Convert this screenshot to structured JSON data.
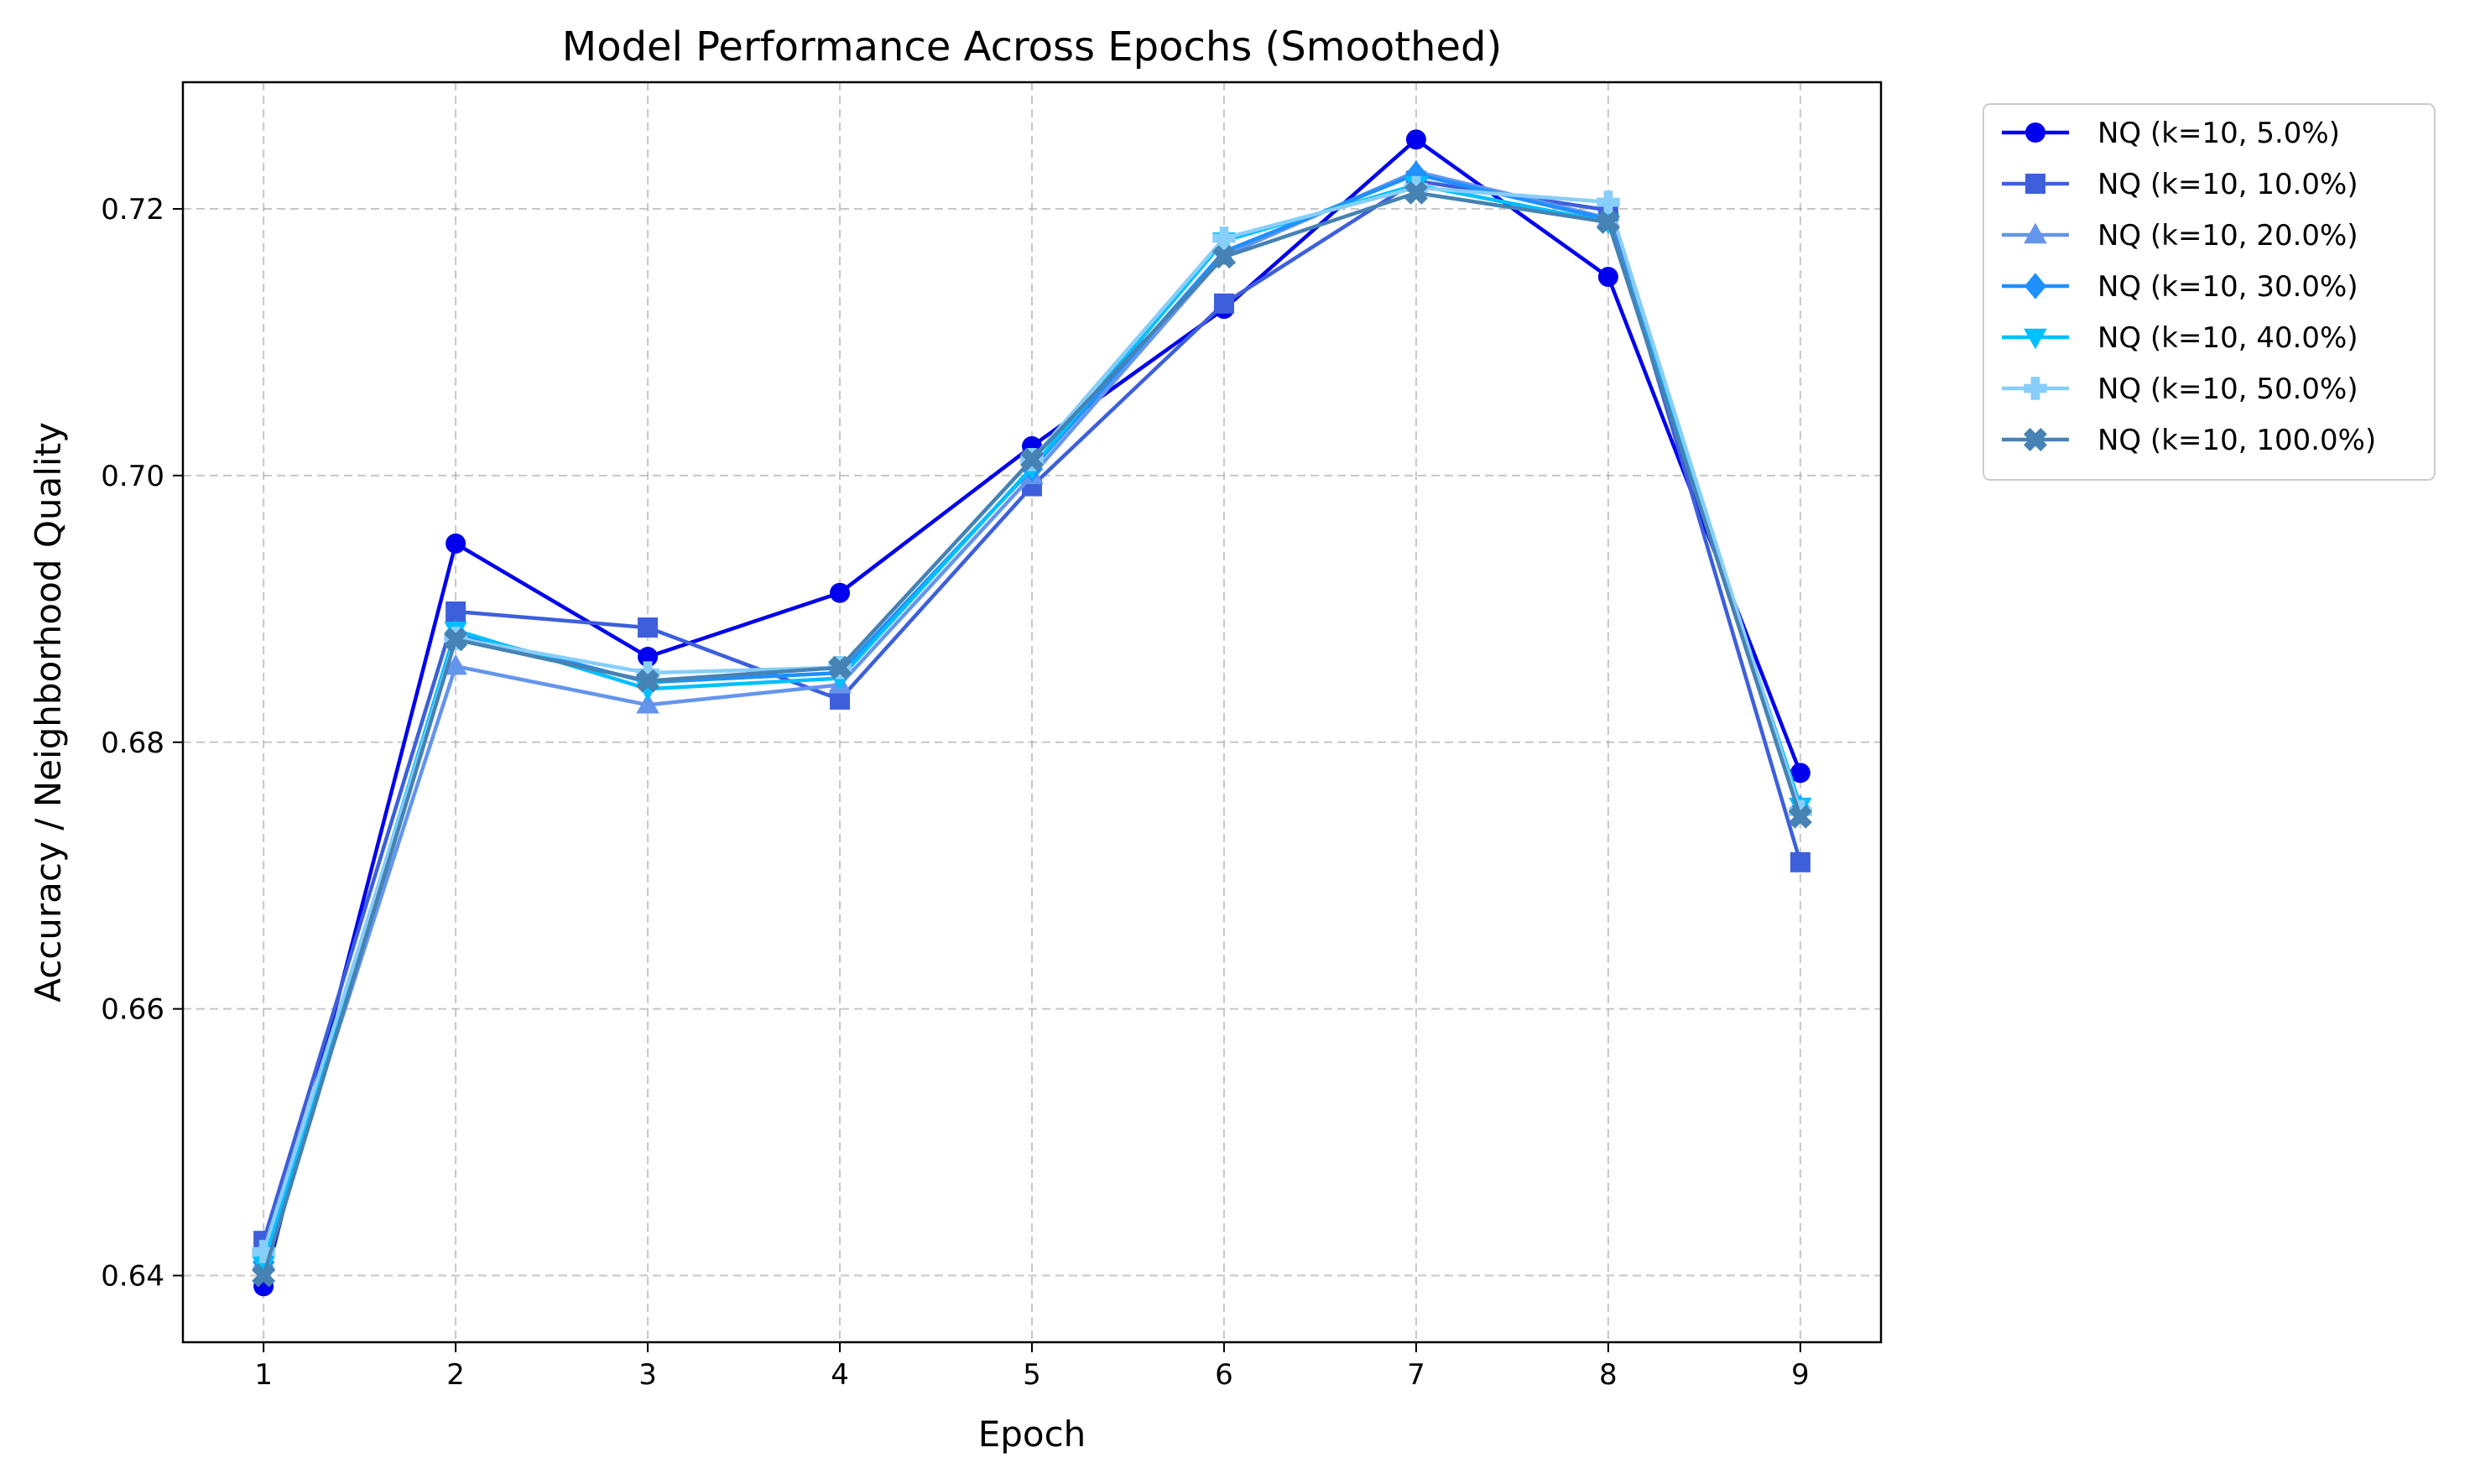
{
  "chart_data": {
    "type": "line",
    "title": "Model Performance Across Epochs (Smoothed)",
    "xlabel": "Epoch",
    "ylabel": "Accuracy / Neighborhood Quality",
    "x": [
      1,
      2,
      3,
      4,
      5,
      6,
      7,
      8,
      9
    ],
    "xticks": [
      "1",
      "2",
      "3",
      "4",
      "5",
      "6",
      "7",
      "8",
      "9"
    ],
    "xlim": [
      0.58,
      9.42
    ],
    "yticks": [
      "0.64",
      "0.66",
      "0.68",
      "0.70",
      "0.72"
    ],
    "ytick_values": [
      0.64,
      0.66,
      0.68,
      0.7,
      0.72
    ],
    "ylim": [
      0.635,
      0.7295
    ],
    "grid": true,
    "legend_position": "outside-upper-right",
    "series": [
      {
        "name": "NQ (k=10, 5.0%)",
        "color": "#0000ee",
        "marker": "circle",
        "values": [
          0.6392,
          0.6949,
          0.6864,
          0.6912,
          0.7022,
          0.7125,
          0.7252,
          0.7149,
          0.6777
        ]
      },
      {
        "name": "NQ (k=10, 10.0%)",
        "color": "#3d5fdc",
        "marker": "square",
        "values": [
          0.6426,
          0.6898,
          0.6886,
          0.6832,
          0.6992,
          0.7129,
          0.7221,
          0.7199,
          0.671
        ]
      },
      {
        "name": "NQ (k=10, 20.0%)",
        "color": "#6495ed",
        "marker": "triangle-up",
        "values": [
          0.6411,
          0.6857,
          0.6828,
          0.6843,
          0.7,
          0.7165,
          0.7228,
          0.7193,
          0.6752
        ]
      },
      {
        "name": "NQ (k=10, 30.0%)",
        "color": "#1e90ff",
        "marker": "diamond",
        "values": [
          0.641,
          0.6882,
          0.6845,
          0.6852,
          0.7005,
          0.7168,
          0.7226,
          0.7192,
          0.675
        ]
      },
      {
        "name": "NQ (k=10, 40.0%)",
        "color": "#00bfff",
        "marker": "triangle-down",
        "values": [
          0.6408,
          0.6884,
          0.684,
          0.6848,
          0.7006,
          0.7176,
          0.7218,
          0.719,
          0.6752
        ]
      },
      {
        "name": "NQ (k=10, 50.0%)",
        "color": "#87cefa",
        "marker": "plus",
        "values": [
          0.6418,
          0.6878,
          0.6852,
          0.6856,
          0.7012,
          0.7178,
          0.7216,
          0.7205,
          0.6748
        ]
      },
      {
        "name": "NQ (k=10, 100.0%)",
        "color": "#4682b4",
        "marker": "x",
        "values": [
          0.64,
          0.6877,
          0.6846,
          0.6856,
          0.7012,
          0.7164,
          0.7212,
          0.719,
          0.6744
        ]
      }
    ]
  }
}
